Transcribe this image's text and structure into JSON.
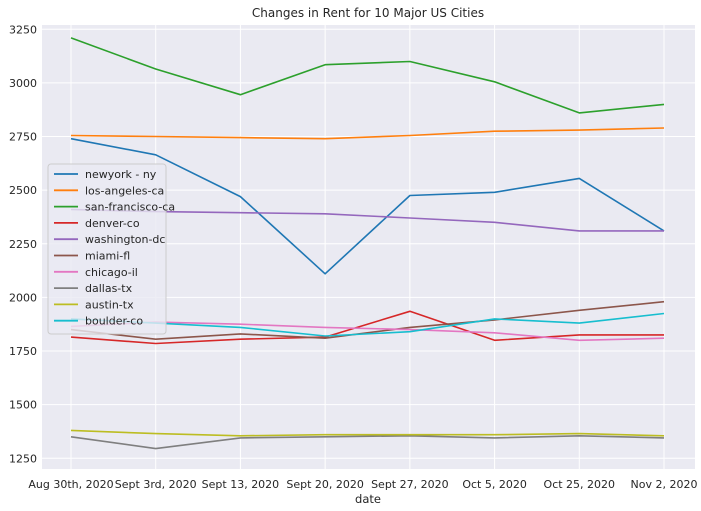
{
  "chart_data": {
    "type": "line",
    "title": "Changes in Rent for 10 Major US Cities",
    "xlabel": "date",
    "ylabel": "",
    "categories": [
      "Aug 30th, 2020",
      "Sept 3rd, 2020",
      "Sept 13, 2020",
      "Sept 20, 2020",
      "Sept 27, 2020",
      "Oct 5, 2020",
      "Oct 25, 2020",
      "Nov 2, 2020"
    ],
    "ylim": [
      1200,
      3270
    ],
    "yticks": [
      1250,
      1500,
      1750,
      2000,
      2250,
      2500,
      2750,
      3000,
      3250
    ],
    "grid": true,
    "legend_position": "center-left",
    "series": [
      {
        "name": "newyork - ny",
        "color": "#1f77b4",
        "values": [
          2740,
          2665,
          2470,
          2110,
          2475,
          2490,
          2555,
          2310
        ]
      },
      {
        "name": "los-angeles-ca",
        "color": "#ff7f0e",
        "values": [
          2755,
          2750,
          2745,
          2740,
          2755,
          2775,
          2780,
          2790
        ]
      },
      {
        "name": "san-francisco-ca",
        "color": "#2ca02c",
        "values": [
          3210,
          3065,
          2945,
          3085,
          3100,
          3005,
          2860,
          2900
        ]
      },
      {
        "name": "denver-co",
        "color": "#d62728",
        "values": [
          1815,
          1785,
          1805,
          1815,
          1935,
          1800,
          1825,
          1825
        ]
      },
      {
        "name": "washington-dc",
        "color": "#9467bd",
        "values": [
          2410,
          2400,
          2395,
          2390,
          2370,
          2350,
          2310,
          2310
        ]
      },
      {
        "name": "miami-fl",
        "color": "#8c564b",
        "values": [
          1850,
          1805,
          1830,
          1810,
          1860,
          1895,
          1940,
          1980
        ]
      },
      {
        "name": "chicago-il",
        "color": "#e377c2",
        "values": [
          1865,
          1885,
          1875,
          1860,
          1850,
          1835,
          1800,
          1810
        ]
      },
      {
        "name": "dallas-tx",
        "color": "#7f7f7f",
        "values": [
          1350,
          1295,
          1345,
          1350,
          1355,
          1345,
          1355,
          1345
        ]
      },
      {
        "name": "austin-tx",
        "color": "#bcbd22",
        "values": [
          1380,
          1365,
          1355,
          1360,
          1360,
          1360,
          1365,
          1355
        ]
      },
      {
        "name": "boulder-co",
        "color": "#17becf",
        "values": [
          1900,
          1880,
          1860,
          1820,
          1840,
          1900,
          1880,
          1925
        ]
      }
    ]
  }
}
